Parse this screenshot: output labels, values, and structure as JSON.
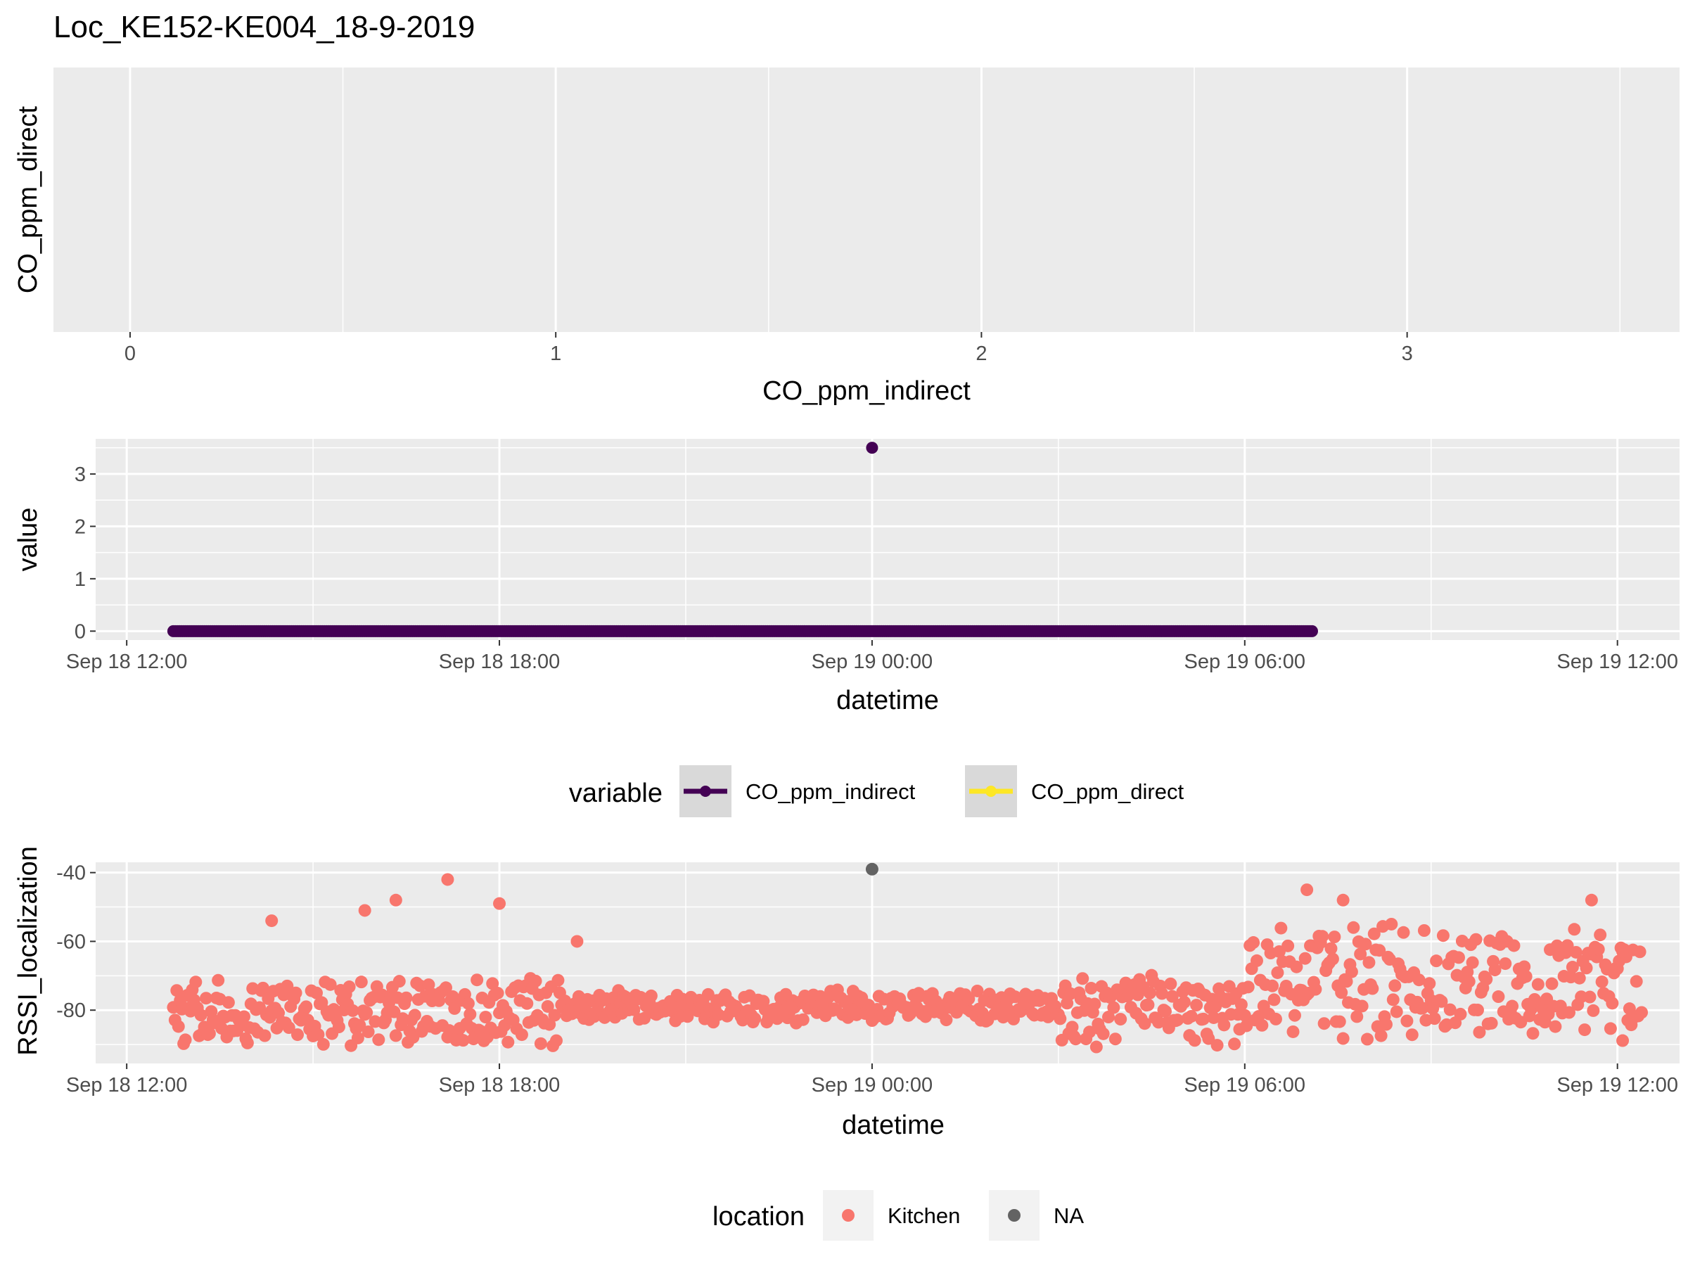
{
  "title": "Loc_KE152-KE004_18-9-2019",
  "chart_data": [
    {
      "type": "scatter",
      "xlabel": "CO_ppm_indirect",
      "ylabel": "CO_ppm_direct",
      "xlim": [
        -0.18,
        3.64
      ],
      "x_ticks": [
        "0",
        "1",
        "2",
        "3"
      ],
      "x_tick_values": [
        0,
        1,
        2,
        3
      ],
      "grid": true,
      "points": []
    },
    {
      "type": "scatter",
      "xlabel": "datetime",
      "ylabel": "value",
      "xlim": [
        "2019-09-18 11:30",
        "2019-09-19 13:00"
      ],
      "ylim": [
        -0.17,
        3.67
      ],
      "x_ticks": [
        "Sep 18 12:00",
        "Sep 18 18:00",
        "Sep 19 00:00",
        "Sep 19 06:00",
        "Sep 19 12:00"
      ],
      "x_tick_values": [
        "2019-09-18 12:00",
        "2019-09-18 18:00",
        "2019-09-19 00:00",
        "2019-09-19 06:00",
        "2019-09-19 12:00"
      ],
      "y_ticks": [
        "0",
        "1",
        "2",
        "3"
      ],
      "y_tick_values": [
        0,
        1,
        2,
        3
      ],
      "grid": true,
      "series": [
        {
          "name": "CO_ppm_indirect",
          "color": "#440154",
          "run": {
            "from": "2019-09-18 12:45",
            "to": "2019-09-19 07:05",
            "value": 0
          },
          "points": [
            {
              "x": "2019-09-19 00:00",
              "y": 3.5
            }
          ]
        },
        {
          "name": "CO_ppm_direct",
          "color": "#FDE725",
          "points": []
        }
      ],
      "legend": {
        "title": "variable",
        "placement": "bottom"
      }
    },
    {
      "type": "scatter",
      "xlabel": "datetime",
      "ylabel": "RSSI_localization",
      "xlim": [
        "2019-09-18 11:30",
        "2019-09-19 13:00"
      ],
      "ylim": [
        -95.5,
        -37
      ],
      "x_ticks": [
        "Sep 18 12:00",
        "Sep 18 18:00",
        "Sep 19 00:00",
        "Sep 19 06:00",
        "Sep 19 12:00"
      ],
      "x_tick_values": [
        "2019-09-18 12:00",
        "2019-09-18 18:00",
        "2019-09-19 00:00",
        "2019-09-19 06:00",
        "2019-09-19 12:00"
      ],
      "y_ticks": [
        "-40",
        "-60",
        "-80"
      ],
      "y_tick_values": [
        -40,
        -60,
        -80
      ],
      "grid": true,
      "series": [
        {
          "name": "Kitchen",
          "color": "#F8766D",
          "points_description": "approx. 900 readings every ~1-2 min from Sep 18 12:45 to Sep 19 12:25, mostly between -92 and -60",
          "band_profile": [
            {
              "from": "2019-09-18 12:45",
              "to": "2019-09-18 19:00",
              "center": -80,
              "spread": 11
            },
            {
              "from": "2019-09-18 19:00",
              "to": "2019-09-19 03:00",
              "center": -79,
              "spread": 5
            },
            {
              "from": "2019-09-19 03:00",
              "to": "2019-09-19 06:00",
              "center": -80,
              "spread": 11
            },
            {
              "from": "2019-09-19 06:00",
              "to": "2019-09-19 12:25",
              "center": -72,
              "spread": 18
            }
          ],
          "highlights": [
            {
              "x": "2019-09-18 17:10",
              "y": -42
            },
            {
              "x": "2019-09-18 16:20",
              "y": -48
            },
            {
              "x": "2019-09-18 18:00",
              "y": -49
            },
            {
              "x": "2019-09-18 15:50",
              "y": -51
            },
            {
              "x": "2019-09-18 14:20",
              "y": -54
            },
            {
              "x": "2019-09-18 19:15",
              "y": -60
            },
            {
              "x": "2019-09-19 07:00",
              "y": -45
            },
            {
              "x": "2019-09-19 07:35",
              "y": -48
            },
            {
              "x": "2019-09-19 11:35",
              "y": -48
            },
            {
              "x": "2019-09-19 12:05",
              "y": -63
            }
          ]
        },
        {
          "name": "NA",
          "color": "#636363",
          "points": [
            {
              "x": "2019-09-19 00:00",
              "y": -39
            }
          ]
        }
      ],
      "legend": {
        "title": "location",
        "placement": "bottom"
      }
    }
  ]
}
